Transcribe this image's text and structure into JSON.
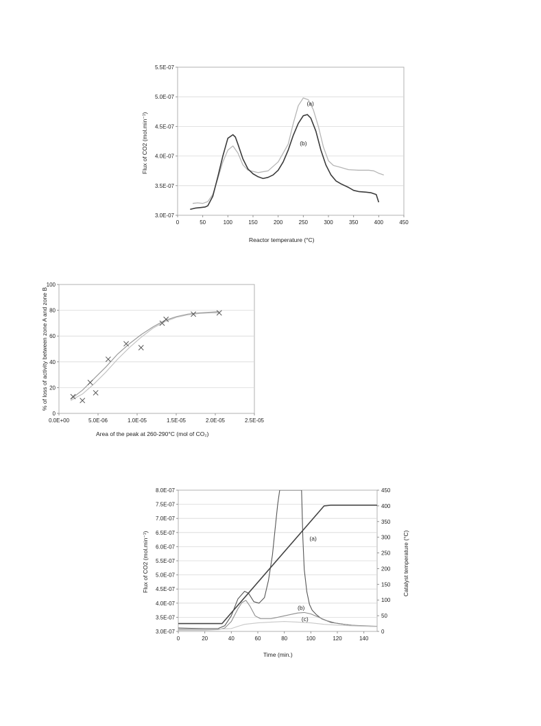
{
  "chart_data": [
    {
      "type": "line",
      "xlabel": "Reactor temperature (°C)",
      "ylabel": "Flux of CO2 (mol.min⁻¹)",
      "xlim": [
        0,
        450
      ],
      "ylim": [
        3e-07,
        5.5e-07
      ],
      "xticks": [
        "0",
        "50",
        "100",
        "150",
        "200",
        "250",
        "300",
        "350",
        "400",
        "450"
      ],
      "yticks": [
        "3.0E-07",
        "3.5E-07",
        "4.0E-07",
        "4.5E-07",
        "5.0E-07",
        "5.5E-07"
      ],
      "grid": "horizontal",
      "series": [
        {
          "name": "(a)",
          "color": "#b5b5b5",
          "x": [
            30,
            40,
            50,
            60,
            70,
            80,
            90,
            100,
            110,
            120,
            130,
            140,
            160,
            180,
            200,
            220,
            230,
            240,
            250,
            260,
            270,
            280,
            290,
            300,
            310,
            320,
            340,
            360,
            380,
            390,
            400,
            410
          ],
          "y": [
            3.2e-07,
            3.21e-07,
            3.2e-07,
            3.23e-07,
            3.35e-07,
            3.62e-07,
            3.9e-07,
            4.1e-07,
            4.17e-07,
            4.05e-07,
            3.85e-07,
            3.76e-07,
            3.72e-07,
            3.75e-07,
            3.9e-07,
            4.2e-07,
            4.55e-07,
            4.85e-07,
            4.98e-07,
            4.95e-07,
            4.78e-07,
            4.5e-07,
            4.15e-07,
            3.92e-07,
            3.84e-07,
            3.82e-07,
            3.77e-07,
            3.76e-07,
            3.76e-07,
            3.75e-07,
            3.71e-07,
            3.68e-07
          ]
        },
        {
          "name": "(b)",
          "color": "#3a3a3a",
          "x": [
            25,
            35,
            45,
            55,
            60,
            70,
            80,
            90,
            100,
            110,
            115,
            120,
            130,
            140,
            150,
            160,
            170,
            180,
            190,
            200,
            210,
            220,
            230,
            240,
            250,
            258,
            265,
            275,
            285,
            295,
            305,
            315,
            325,
            340,
            350,
            360,
            375,
            385,
            395,
            400
          ],
          "y": [
            3.1e-07,
            3.12e-07,
            3.13e-07,
            3.14e-07,
            3.16e-07,
            3.32e-07,
            3.65e-07,
            4e-07,
            4.3e-07,
            4.36e-07,
            4.32e-07,
            4.2e-07,
            3.95e-07,
            3.78e-07,
            3.7e-07,
            3.65e-07,
            3.62e-07,
            3.64e-07,
            3.68e-07,
            3.76e-07,
            3.9e-07,
            4.1e-07,
            4.35e-07,
            4.55e-07,
            4.68e-07,
            4.7e-07,
            4.64e-07,
            4.42e-07,
            4.1e-07,
            3.85e-07,
            3.68e-07,
            3.58e-07,
            3.53e-07,
            3.47e-07,
            3.42e-07,
            3.4e-07,
            3.39e-07,
            3.38e-07,
            3.35e-07,
            3.22e-07
          ]
        }
      ],
      "annotations": [
        {
          "text": "(a)",
          "x": 257,
          "y": 4.85e-07
        },
        {
          "text": "(b)",
          "x": 243,
          "y": 4.18e-07
        }
      ]
    },
    {
      "type": "scatter",
      "xlabel": "Area of the peak at 260-290°C (mol of CO₂)",
      "ylabel": "% of loss of activity between zone A and zone B",
      "xlim": [
        0,
        2.5e-05
      ],
      "ylim": [
        0,
        100
      ],
      "xticks": [
        "0.0E+00",
        "5.0E-06",
        "1.0E-05",
        "1.5E-05",
        "2.0E-05",
        "2.5E-05"
      ],
      "yticks": [
        "0",
        "20",
        "40",
        "60",
        "80",
        "100"
      ],
      "grid": "horizontal",
      "series": [
        {
          "name": "",
          "marker": "x",
          "color": "#555555",
          "x": [
            1.8e-06,
            3e-06,
            4e-06,
            4.7e-06,
            6.3e-06,
            8.6e-06,
            1.05e-05,
            1.32e-05,
            1.37e-05,
            1.72e-05,
            2.05e-05
          ],
          "y": [
            13,
            10,
            24,
            16,
            42,
            54,
            51,
            70,
            73,
            77,
            78
          ]
        }
      ],
      "fit_lines": [
        {
          "color": "#9a9a9a",
          "x": [
            1.5e-06,
            3e-06,
            4.5e-06,
            6e-06,
            7.5e-06,
            9e-06,
            1.05e-05,
            1.2e-05,
            1.35e-05,
            1.5e-05,
            1.65e-05,
            1.8e-05,
            1.95e-05,
            2.05e-05
          ],
          "y": [
            11,
            18,
            27,
            36,
            46,
            54,
            61,
            67,
            72,
            75,
            77,
            78,
            78.5,
            79
          ]
        },
        {
          "color": "#c2c2c2",
          "x": [
            1.5e-06,
            3e-06,
            4.5e-06,
            6e-06,
            7.5e-06,
            9e-06,
            1.05e-05,
            1.2e-05,
            1.35e-05,
            1.5e-05,
            1.65e-05,
            1.8e-05,
            1.95e-05,
            2.05e-05
          ],
          "y": [
            10,
            15,
            23,
            32,
            42,
            51,
            59,
            66,
            71,
            74.5,
            76.5,
            77.5,
            78,
            78
          ]
        }
      ]
    },
    {
      "type": "line",
      "xlabel": "Time (min.)",
      "ylabel": "Flux of CO2 (mol.min⁻¹)",
      "y2label": "Catalyst temperature (°C)",
      "xlim": [
        0,
        150
      ],
      "ylim": [
        3e-07,
        8e-07
      ],
      "y2lim": [
        0,
        450
      ],
      "xticks": [
        "0",
        "20",
        "40",
        "60",
        "80",
        "100",
        "120",
        "140"
      ],
      "yticks": [
        "3.0E-07",
        "3.5E-07",
        "4.0E-07",
        "4.5E-07",
        "5.0E-07",
        "5.5E-07",
        "6.0E-07",
        "6.5E-07",
        "7.0E-07",
        "7.5E-07",
        "8.0E-07"
      ],
      "y2ticks": [
        "0",
        "50",
        "100",
        "150",
        "200",
        "250",
        "300",
        "350",
        "400",
        "450"
      ],
      "grid": "horizontal",
      "series": [
        {
          "name": "(a)",
          "color": "#555555",
          "x": [
            0,
            10,
            20,
            30,
            35,
            40,
            45,
            50,
            53,
            57,
            61,
            65,
            68,
            71,
            73,
            75,
            76.5,
            93,
            94,
            95,
            97,
            99,
            101,
            104,
            108,
            115,
            125,
            135,
            145,
            150
          ],
          "y": [
            3.12e-07,
            3.11e-07,
            3.1e-07,
            3.1e-07,
            3.2e-07,
            3.55e-07,
            4.15e-07,
            4.42e-07,
            4.35e-07,
            4.05e-07,
            4e-07,
            4.2e-07,
            4.8e-07,
            5.7e-07,
            6.6e-07,
            7.5e-07,
            8e-07,
            8e-07,
            6.3e-07,
            5.2e-07,
            4.4e-07,
            3.95e-07,
            3.75e-07,
            3.6e-07,
            3.45e-07,
            3.32e-07,
            3.25e-07,
            3.2e-07,
            3.18e-07,
            3.18e-07
          ]
        },
        {
          "name": "(b)",
          "color": "#8c8c8c",
          "x": [
            0,
            10,
            20,
            30,
            35,
            40,
            45,
            48,
            51,
            54,
            58,
            62,
            70,
            80,
            90,
            95,
            100,
            106,
            112,
            120,
            130,
            140,
            150
          ],
          "y": [
            3.05e-07,
            3.05e-07,
            3.05e-07,
            3.06e-07,
            3.12e-07,
            3.35e-07,
            3.8e-07,
            4.02e-07,
            4.1e-07,
            3.9e-07,
            3.55e-07,
            3.45e-07,
            3.45e-07,
            3.55e-07,
            3.65e-07,
            3.67e-07,
            3.62e-07,
            3.5e-07,
            3.38e-07,
            3.28e-07,
            3.22e-07,
            3.2e-07,
            3.18e-07
          ]
        },
        {
          "name": "(c)",
          "color": "#c8c8c8",
          "x": [
            0,
            10,
            20,
            30,
            40,
            45,
            50,
            60,
            70,
            80,
            90,
            100,
            110,
            120,
            130,
            140,
            150
          ],
          "y": [
            3.08e-07,
            3.08e-07,
            3.08e-07,
            3.08e-07,
            3.1e-07,
            3.18e-07,
            3.25e-07,
            3.3e-07,
            3.33e-07,
            3.35e-07,
            3.33e-07,
            3.3e-07,
            3.25e-07,
            3.22e-07,
            3.2e-07,
            3.18e-07,
            3.17e-07
          ]
        },
        {
          "name": "Catalyst temperature",
          "axis": "y2",
          "color": "#444444",
          "x": [
            0,
            33,
            110,
            115,
            150
          ],
          "y": [
            25,
            25,
            400,
            402,
            402
          ]
        }
      ],
      "annotations": [
        {
          "text": "(a)",
          "x": 99,
          "y": 6.22e-07
        },
        {
          "text": "(b)",
          "x": 90,
          "y": 3.77e-07
        },
        {
          "text": "(c)",
          "x": 93,
          "y": 3.37e-07
        }
      ]
    }
  ]
}
